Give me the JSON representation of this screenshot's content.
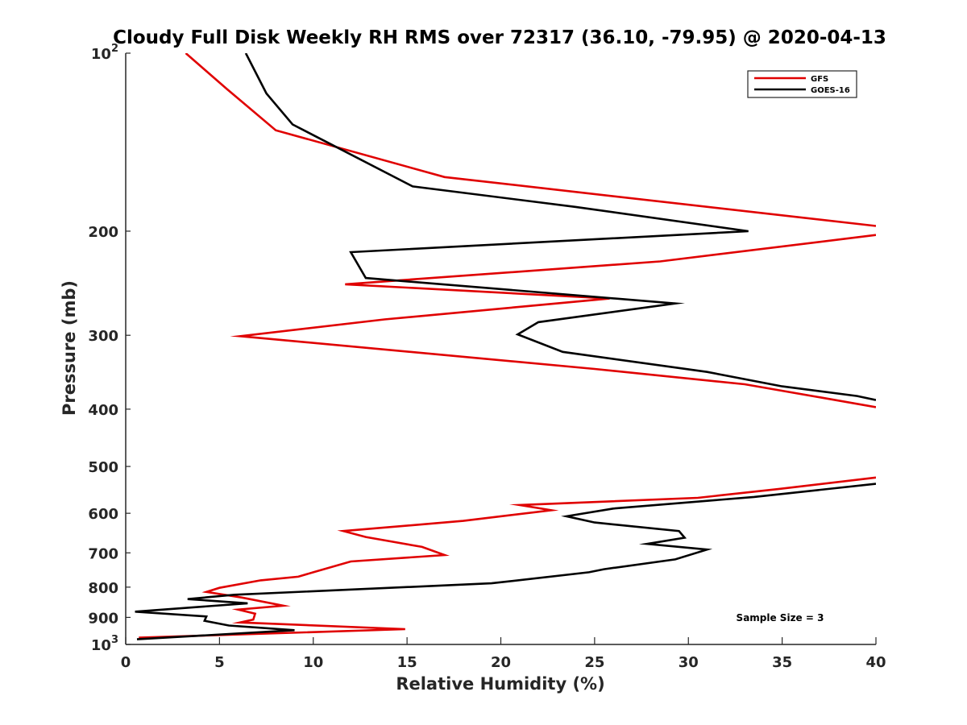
{
  "chart_data": {
    "type": "line",
    "title": "Cloudy Full Disk Weekly RH RMS over 72317 (36.10, -79.95) @ 2020-04-13",
    "xlabel": "Relative Humidity (%)",
    "ylabel": "Pressure (mb)",
    "xlim": [
      0,
      40
    ],
    "ylim": [
      1000,
      100
    ],
    "yscale": "log",
    "y_reversed": true,
    "grid": false,
    "legend_position": "top-right",
    "x_ticks": [
      0,
      5,
      10,
      15,
      20,
      25,
      30,
      35,
      40
    ],
    "x_tick_labels": [
      "0",
      "5",
      "10",
      "15",
      "20",
      "25",
      "30",
      "35",
      "40"
    ],
    "y_ticks": [
      100,
      200,
      300,
      400,
      500,
      600,
      700,
      800,
      900,
      1000
    ],
    "y_tick_labels": [
      {
        "base": "10",
        "exp": "2"
      },
      {
        "base": "200",
        "exp": ""
      },
      {
        "base": "300",
        "exp": ""
      },
      {
        "base": "400",
        "exp": ""
      },
      {
        "base": "500",
        "exp": ""
      },
      {
        "base": "600",
        "exp": ""
      },
      {
        "base": "700",
        "exp": ""
      },
      {
        "base": "800",
        "exp": ""
      },
      {
        "base": "900",
        "exp": ""
      },
      {
        "base": "10",
        "exp": "3"
      }
    ],
    "annotation": "Sample Size = 3",
    "series": [
      {
        "name": "GFS",
        "color": "#e00000",
        "segments": [
          [
            [
              3.2,
              100
            ],
            [
              5.4,
              115
            ],
            [
              8.0,
              135
            ],
            [
              17.0,
              162
            ],
            [
              40.0,
              196
            ]
          ],
          [
            [
              40.0,
              203
            ],
            [
              28.5,
              225
            ],
            [
              11.7,
              246
            ],
            [
              25.8,
              260
            ],
            [
              13.8,
              282
            ],
            [
              6.1,
              301
            ],
            [
              25.0,
              342
            ],
            [
              33.0,
              363
            ],
            [
              37.0,
              382
            ],
            [
              40.0,
              397
            ]
          ],
          [
            [
              40.0,
              522
            ],
            [
              34.8,
              546
            ],
            [
              30.5,
              565
            ],
            [
              21.0,
              581
            ],
            [
              22.7,
              593
            ],
            [
              18.0,
              618
            ],
            [
              11.6,
              643
            ],
            [
              12.8,
              658
            ],
            [
              15.8,
              684
            ],
            [
              17.0,
              706
            ],
            [
              12.0,
              724
            ],
            [
              10.0,
              755
            ],
            [
              9.2,
              768
            ],
            [
              7.2,
              779
            ],
            [
              5.0,
              802
            ],
            [
              4.3,
              815
            ],
            [
              6.2,
              833
            ],
            [
              8.4,
              860
            ],
            [
              6.0,
              873
            ],
            [
              6.9,
              887
            ],
            [
              6.8,
              908
            ],
            [
              6.1,
              918
            ],
            [
              14.9,
              942
            ],
            [
              0.7,
              974
            ]
          ]
        ]
      },
      {
        "name": "GOES-16",
        "color": "#000000",
        "segments": [
          [
            [
              6.4,
              100
            ],
            [
              7.5,
              117
            ],
            [
              8.9,
              132
            ],
            [
              15.3,
              168
            ],
            [
              24.0,
              182
            ],
            [
              33.2,
              200
            ],
            [
              12.0,
              217
            ],
            [
              12.8,
              240
            ],
            [
              29.3,
              265
            ],
            [
              22.0,
              285
            ],
            [
              20.9,
              299
            ],
            [
              23.3,
              320
            ],
            [
              31.0,
              346
            ],
            [
              35.0,
              366
            ],
            [
              39.0,
              380
            ],
            [
              40.0,
              386
            ]
          ],
          [
            [
              40.0,
              535
            ],
            [
              33.5,
              563
            ],
            [
              26.0,
              589
            ],
            [
              23.5,
              607
            ],
            [
              25.0,
              622
            ],
            [
              29.5,
              643
            ],
            [
              29.8,
              660
            ],
            [
              27.8,
              676
            ],
            [
              31.0,
              691
            ],
            [
              29.3,
              718
            ],
            [
              25.5,
              746
            ],
            [
              24.7,
              755
            ],
            [
              19.5,
              788
            ],
            [
              5.8,
              824
            ],
            [
              3.3,
              838
            ],
            [
              6.5,
              852
            ],
            [
              0.5,
              880
            ],
            [
              4.3,
              897
            ],
            [
              4.2,
              912
            ],
            [
              5.5,
              929
            ],
            [
              9.0,
              946
            ],
            [
              0.6,
              980
            ]
          ]
        ]
      }
    ]
  }
}
